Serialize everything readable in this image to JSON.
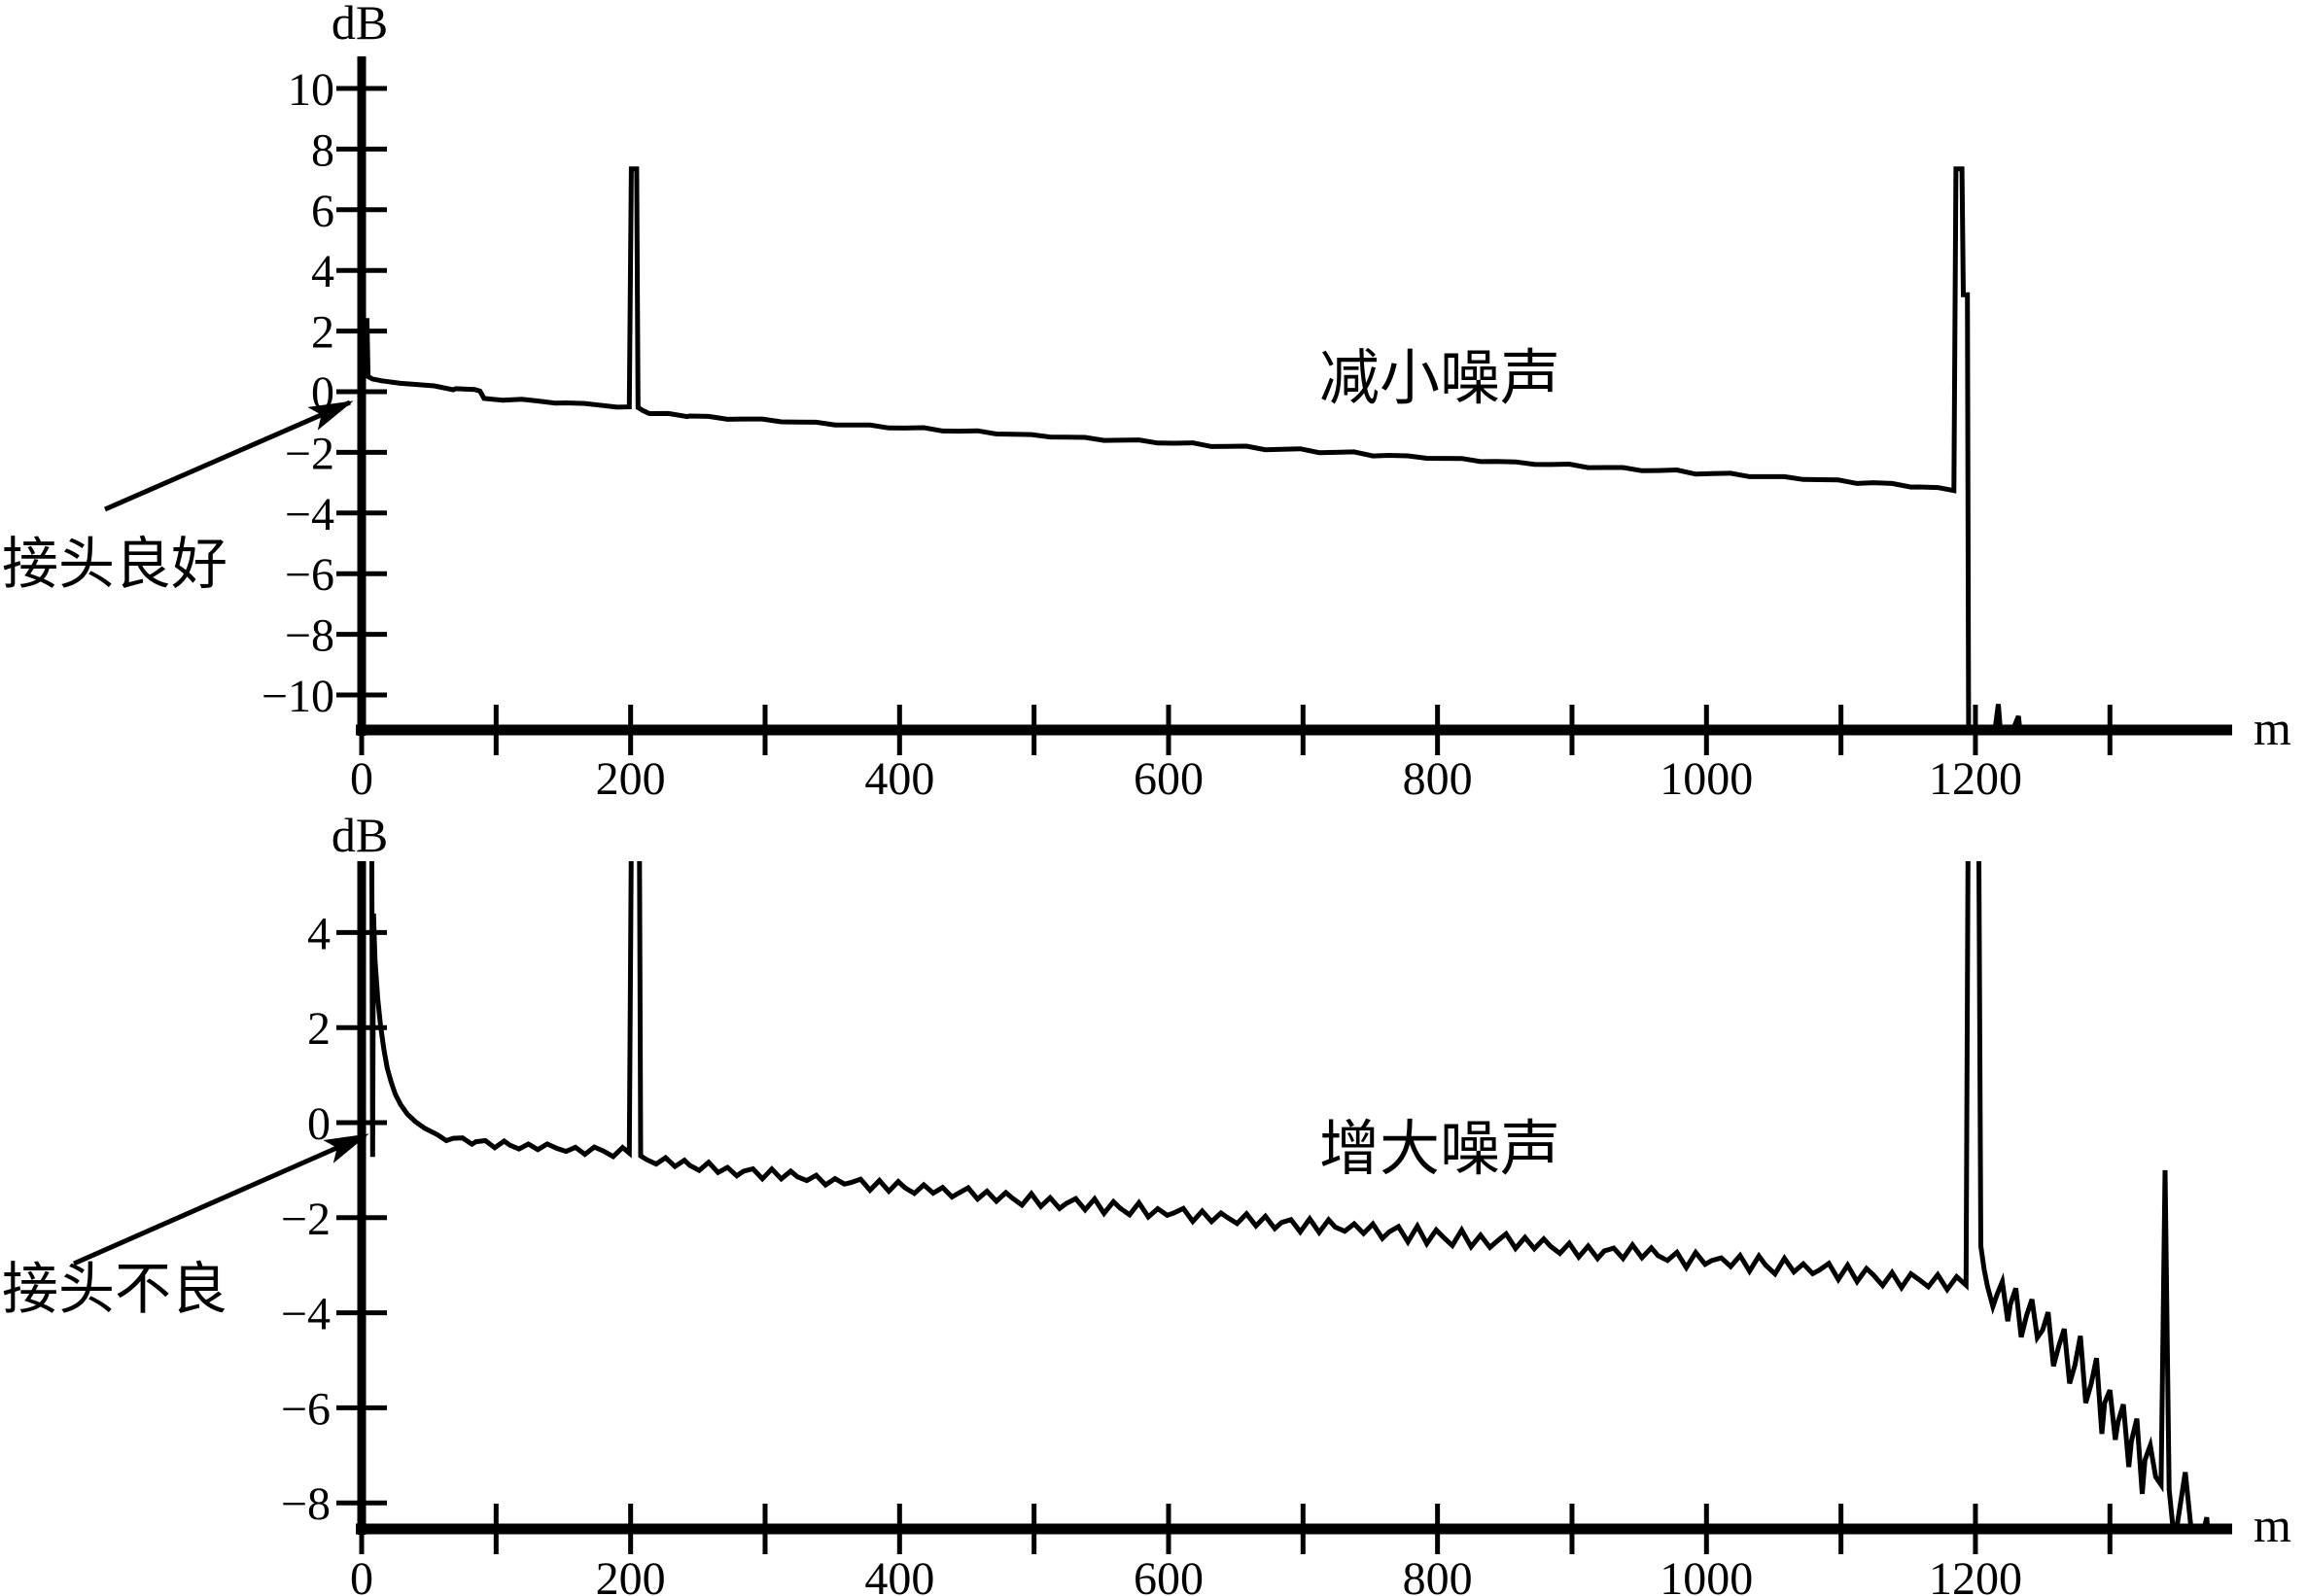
{
  "page": {
    "background": "#ffffff",
    "ink": "#000000",
    "description_top": "OTDR trace with good connector and reduced noise",
    "description_bottom": "OTDR trace with bad connector and increased noise"
  },
  "chart_data": [
    {
      "type": "line",
      "title": "减小噪声",
      "ylabel": "dB",
      "xlabel": "m",
      "grid": false,
      "legend": "none",
      "xlim": [
        0,
        1390
      ],
      "ylim": [
        -11.3,
        11.3
      ],
      "xtick_values": [
        0,
        100,
        200,
        300,
        400,
        500,
        600,
        700,
        800,
        900,
        1000,
        1100,
        1200,
        1300
      ],
      "xtick_labels": [
        "0",
        "",
        "200",
        "",
        "400",
        "",
        "600",
        "",
        "800",
        "",
        "1000",
        "",
        "1200",
        ""
      ],
      "ytick_values": [
        10,
        8,
        6,
        4,
        2,
        0,
        -2,
        -4,
        -6,
        -8,
        -10
      ],
      "ytick_labels": [
        "10",
        "8",
        "6",
        "4",
        "2",
        "0",
        "−2",
        "−4",
        "−6",
        "−8",
        "−10"
      ],
      "annotation": {
        "text": "接头良好",
        "points_to_m": 0,
        "points_to_db": 0
      },
      "events": [
        {
          "name": "launch-pulse",
          "m": 0,
          "peak_db": 2.35
        },
        {
          "name": "connector-reflection",
          "m": 203,
          "peak_db": 7.35
        },
        {
          "name": "fiber-end-reflection",
          "m": 1190,
          "peak_db": 7.35
        }
      ],
      "series": [
        {
          "name": "trace",
          "points": [
            [
              0,
              0
            ],
            [
              1,
              2.35
            ],
            [
              4,
              2.35
            ],
            [
              4.8,
              0.5
            ],
            [
              8,
              0.42
            ],
            [
              15,
              0.36
            ],
            [
              40,
              0.24
            ],
            [
              70,
              0.1
            ],
            [
              88,
              0.02
            ],
            [
              91,
              -0.22
            ],
            [
              130,
              -0.3
            ],
            [
              152,
              -0.37
            ],
            [
              176,
              -0.44
            ],
            [
              199,
              -0.5
            ],
            [
              200.5,
              7.35
            ],
            [
              204.5,
              7.35
            ],
            [
              205.5,
              -0.52
            ],
            [
              209,
              -0.62
            ],
            [
              214,
              -0.72
            ],
            [
              244,
              -0.8
            ],
            [
              284,
              -0.9
            ],
            [
              324,
              -1.0
            ],
            [
              364,
              -1.1
            ],
            [
              404,
              -1.2
            ],
            [
              444,
              -1.3
            ],
            [
              484,
              -1.4
            ],
            [
              524,
              -1.5
            ],
            [
              564,
              -1.6
            ],
            [
              604,
              -1.7
            ],
            [
              644,
              -1.8
            ],
            [
              684,
              -1.9
            ],
            [
              724,
              -2.0
            ],
            [
              764,
              -2.1
            ],
            [
              804,
              -2.2
            ],
            [
              844,
              -2.3
            ],
            [
              884,
              -2.4
            ],
            [
              924,
              -2.5
            ],
            [
              964,
              -2.6
            ],
            [
              1004,
              -2.7
            ],
            [
              1044,
              -2.8
            ],
            [
              1084,
              -2.9
            ],
            [
              1124,
              -3.0
            ],
            [
              1158,
              -3.14
            ],
            [
              1184,
              -3.26
            ],
            [
              1185.5,
              7.35
            ],
            [
              1190,
              7.35
            ],
            [
              1191,
              3.2
            ],
            [
              1194,
              3.2
            ],
            [
              1195,
              -12
            ],
            [
              1212,
              -12
            ],
            [
              1217,
              -10.3
            ],
            [
              1220,
              -12
            ],
            [
              1232,
              -10.7
            ],
            [
              1235,
              -12
            ],
            [
              1243,
              -11.0
            ],
            [
              1245,
              -12
            ]
          ],
          "noise": [
            {
              "from": 12,
              "to": 1184,
              "step": 14,
              "amp": 0.045,
              "amp_end": 0.06,
              "seed": 7
            }
          ]
        }
      ]
    },
    {
      "type": "line",
      "title": "增大噪声",
      "ylabel": "dB",
      "xlabel": "m",
      "grid": false,
      "legend": "none",
      "xlim": [
        0,
        1390
      ],
      "ylim": [
        -8.6,
        5.6
      ],
      "xtick_values": [
        0,
        100,
        200,
        300,
        400,
        500,
        600,
        700,
        800,
        900,
        1000,
        1100,
        1200,
        1300
      ],
      "xtick_labels": [
        "0",
        "",
        "200",
        "",
        "400",
        "",
        "600",
        "",
        "800",
        "",
        "1000",
        "",
        "1200",
        ""
      ],
      "ytick_values": [
        4,
        2,
        0,
        -2,
        -4,
        -6,
        -8
      ],
      "ytick_labels": [
        "4",
        "2",
        "0",
        "−2",
        "−4",
        "−6",
        "−8"
      ],
      "annotation": {
        "text": "接头不良",
        "points_to_m": 0,
        "points_to_db": 0
      },
      "events": [
        {
          "name": "launch-pulse-saturated",
          "m": 0,
          "peak_db": 5.6
        },
        {
          "name": "connector-reflection",
          "m": 203,
          "peak_db": 5.6
        },
        {
          "name": "fiber-end-reflection",
          "m": 1198,
          "peak_db": 5.6
        },
        {
          "name": "noise-spike",
          "m": 1341,
          "peak_db": -1.0
        }
      ],
      "series": [
        {
          "name": "trace",
          "points": [
            [
              0,
              6
            ],
            [
              7.5,
              6
            ],
            [
              8.2,
              -0.72
            ],
            [
              8.8,
              4.4
            ],
            [
              10,
              3.4
            ],
            [
              12,
              2.6
            ],
            [
              14,
              2.05
            ],
            [
              16.5,
              1.55
            ],
            [
              19,
              1.15
            ],
            [
              22,
              0.85
            ],
            [
              25,
              0.6
            ],
            [
              29,
              0.38
            ],
            [
              34,
              0.18
            ],
            [
              40,
              0.02
            ],
            [
              47,
              -0.12
            ],
            [
              56,
              -0.25
            ],
            [
              68,
              -0.33
            ],
            [
              85,
              -0.4
            ],
            [
              110,
              -0.47
            ],
            [
              145,
              -0.54
            ],
            [
              180,
              -0.6
            ],
            [
              199,
              -0.64
            ],
            [
              200.5,
              6
            ],
            [
              206.5,
              6
            ],
            [
              207.5,
              -0.7
            ],
            [
              212,
              -0.78
            ],
            [
              244,
              -0.9
            ],
            [
              284,
              -1.02
            ],
            [
              324,
              -1.14
            ],
            [
              364,
              -1.26
            ],
            [
              404,
              -1.37
            ],
            [
              444,
              -1.48
            ],
            [
              484,
              -1.59
            ],
            [
              524,
              -1.7
            ],
            [
              564,
              -1.8
            ],
            [
              604,
              -1.9
            ],
            [
              644,
              -2.0
            ],
            [
              684,
              -2.1
            ],
            [
              724,
              -2.2
            ],
            [
              764,
              -2.3
            ],
            [
              804,
              -2.4
            ],
            [
              844,
              -2.5
            ],
            [
              884,
              -2.6
            ],
            [
              924,
              -2.7
            ],
            [
              964,
              -2.8
            ],
            [
              1004,
              -2.9
            ],
            [
              1044,
              -3.0
            ],
            [
              1084,
              -3.1
            ],
            [
              1124,
              -3.2
            ],
            [
              1158,
              -3.3
            ],
            [
              1193,
              -3.42
            ],
            [
              1194.5,
              6
            ],
            [
              1202.5,
              6
            ],
            [
              1204,
              -2.6
            ],
            [
              1206.5,
              -3.1
            ],
            [
              1209,
              -3.45
            ],
            [
              1216,
              -3.62
            ],
            [
              1226,
              -3.82
            ],
            [
              1238,
              -4.06
            ],
            [
              1250,
              -4.36
            ],
            [
              1262,
              -4.7
            ],
            [
              1274,
              -5.1
            ],
            [
              1286,
              -5.5
            ],
            [
              1296,
              -5.9
            ],
            [
              1306,
              -6.3
            ],
            [
              1316,
              -6.7
            ],
            [
              1326,
              -7.1
            ],
            [
              1334,
              -7.45
            ],
            [
              1338,
              -7.62
            ],
            [
              1341,
              -1.0
            ],
            [
              1344,
              -7.72
            ],
            [
              1352,
              -8.1
            ],
            [
              1360,
              -8.45
            ],
            [
              1368,
              -8.8
            ],
            [
              1374,
              -9.1
            ]
          ],
          "noise": [
            {
              "from": 55,
              "to": 1193,
              "step": 7,
              "amp": 0.1,
              "amp_end": 0.22,
              "seed": 3
            },
            {
              "from": 1209,
              "to": 1336,
              "step": 4,
              "amp": 0.45,
              "amp_end": 1.15,
              "seed": 11
            },
            {
              "from": 1344,
              "to": 1374,
              "step": 4,
              "amp": 1.2,
              "amp_end": 0.9,
              "seed": 5
            }
          ]
        }
      ]
    }
  ]
}
